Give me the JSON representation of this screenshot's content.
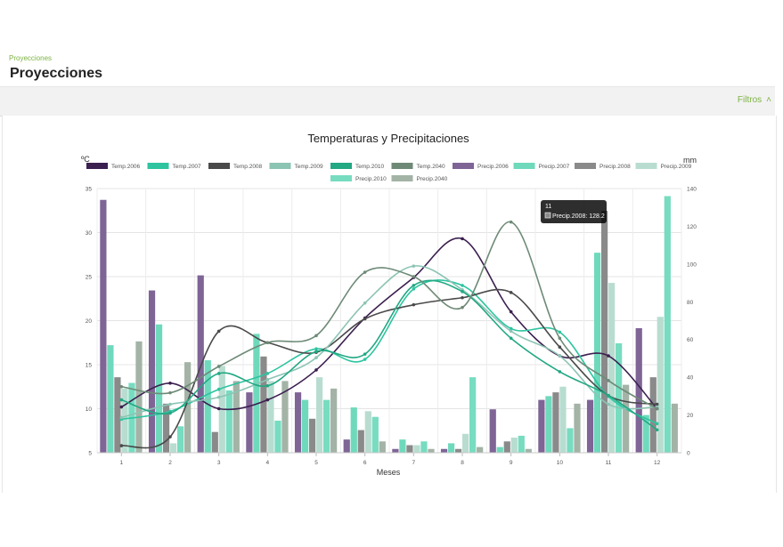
{
  "breadcrumb": "Proyecciones",
  "page_title": "Proyecciones",
  "filters": {
    "label": "Filtros"
  },
  "chart_data": {
    "type": "bar+line",
    "title": "Temperaturas y Precipitaciones",
    "xlabel": "Meses",
    "ylabel_left": "ºC",
    "ylabel_right": "mm",
    "categories": [
      "1",
      "2",
      "3",
      "4",
      "5",
      "6",
      "7",
      "8",
      "9",
      "10",
      "11",
      "12"
    ],
    "ylim_left": [
      5,
      35
    ],
    "ylim_right": [
      0,
      140
    ],
    "yticks_left": [
      5,
      10,
      15,
      20,
      25,
      30,
      35
    ],
    "yticks_right": [
      0,
      20,
      40,
      60,
      80,
      100,
      120,
      140
    ],
    "grid": true,
    "legend_position": "top",
    "line_series": [
      {
        "name": "Temp.2006",
        "color": "#3b1f4f",
        "values": [
          10.2,
          12.9,
          10.0,
          11.0,
          14.4,
          20.3,
          24.9,
          29.3,
          21.0,
          16.0,
          16.0,
          10.0
        ]
      },
      {
        "name": "Temp.2007",
        "color": "#2ec4a0",
        "values": [
          8.8,
          9.7,
          12.2,
          14.0,
          16.8,
          15.6,
          23.6,
          24.0,
          19.1,
          18.7,
          11.4,
          8.3
        ]
      },
      {
        "name": "Temp.2008",
        "color": "#4a4a4a",
        "values": [
          5.8,
          6.8,
          18.8,
          17.5,
          16.4,
          20.2,
          21.8,
          22.6,
          23.2,
          17.0,
          11.5,
          10.5
        ]
      },
      {
        "name": "Temp.2009",
        "color": "#8cc4b4",
        "values": [
          9.0,
          10.5,
          11.3,
          13.3,
          15.8,
          22.0,
          26.2,
          23.5,
          18.8,
          16.0,
          10.5,
          10.2
        ]
      },
      {
        "name": "Temp.2010",
        "color": "#22a883",
        "values": [
          11.0,
          9.5,
          14.0,
          12.6,
          16.5,
          16.2,
          24.0,
          23.3,
          18.0,
          14.2,
          11.5,
          7.6
        ]
      },
      {
        "name": "Temp.2040",
        "color": "#6e8a77",
        "values": [
          12.5,
          11.8,
          14.8,
          17.5,
          18.3,
          25.5,
          25.0,
          21.5,
          31.2,
          18.0,
          13.2,
          10.0
        ]
      }
    ],
    "bar_series": [
      {
        "name": "Precip.2006",
        "color": "#7f6496",
        "values": [
          134,
          86,
          94,
          32,
          32,
          7,
          2,
          2,
          23,
          28,
          28,
          66
        ]
      },
      {
        "name": "Precip.2007",
        "color": "#6fd9bc",
        "values": [
          57,
          68,
          49,
          63,
          28,
          24,
          7,
          5,
          3,
          30,
          106,
          20
        ]
      },
      {
        "name": "Precip.2008",
        "color": "#8a8a8a",
        "values": [
          40,
          26,
          11,
          51,
          18,
          12,
          4,
          2,
          6,
          32,
          128.2,
          40
        ]
      },
      {
        "name": "Precip.2009",
        "color": "#b8ddd0",
        "values": [
          34,
          5,
          46,
          38,
          40,
          22,
          4,
          10,
          8,
          35,
          90,
          72
        ]
      },
      {
        "name": "Precip.2010",
        "color": "#77dcc0",
        "values": [
          37,
          14,
          33,
          17,
          28,
          19,
          6,
          40,
          9,
          13,
          58,
          136
        ]
      },
      {
        "name": "Precip.2040",
        "color": "#a3b3a6",
        "values": [
          59,
          48,
          38,
          38,
          34,
          6,
          2,
          3,
          2,
          26,
          36,
          26
        ]
      }
    ],
    "tooltip": {
      "title": "11",
      "label": "Precip.2008: 128.2",
      "series": "Precip.2008",
      "category": "11"
    }
  }
}
